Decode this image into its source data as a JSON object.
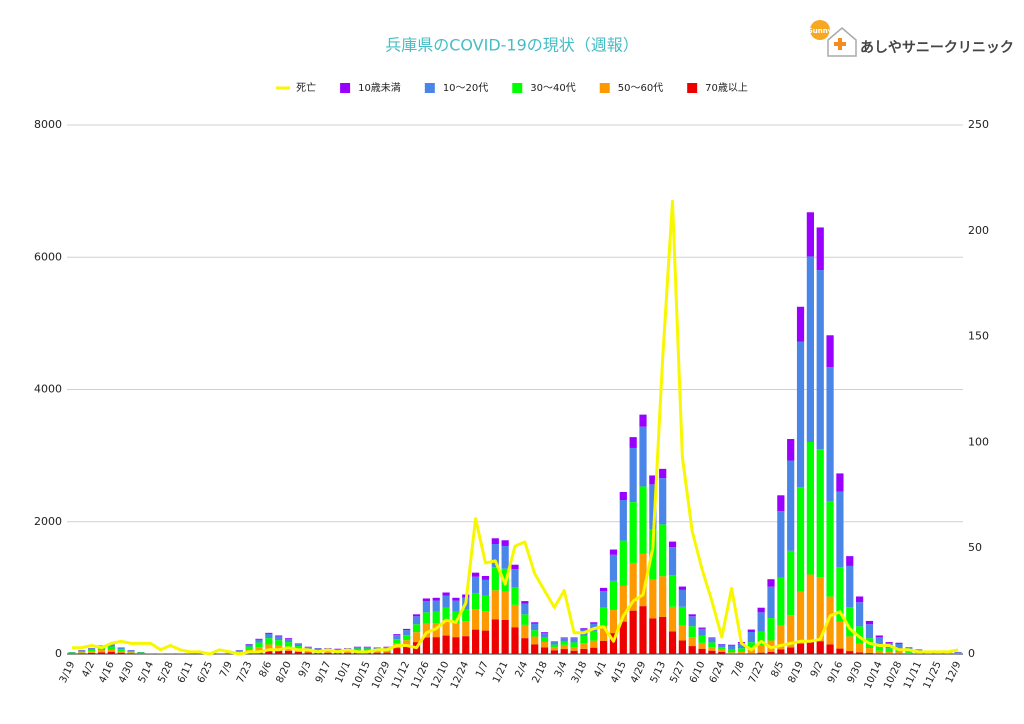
{
  "logo": {
    "badge": "Sunny",
    "text": "あしやサニークリニック"
  },
  "chart_data": {
    "type": "bar",
    "title": "兵庫県のCOVID-19の現状（週報）",
    "categories": [
      "3/19",
      null,
      "4/2",
      null,
      "4/16",
      null,
      "4/30",
      null,
      "5/14",
      null,
      "5/28",
      null,
      "6/11",
      null,
      "6/25",
      null,
      "7/9",
      null,
      "7/23",
      null,
      "8/6",
      null,
      "8/20",
      null,
      "9/3",
      null,
      "9/17",
      null,
      "10/1",
      null,
      "10/15",
      null,
      "10/29",
      null,
      "11/12",
      null,
      "11/26",
      null,
      "12/10",
      null,
      "12/24",
      null,
      "1/7",
      null,
      "1/21",
      null,
      "2/4",
      null,
      "2/18",
      null,
      "3/4",
      null,
      "3/18",
      null,
      "4/1",
      null,
      "4/15",
      null,
      "4/29",
      null,
      "5/13",
      null,
      "5/27",
      null,
      "6/10",
      null,
      "6/24",
      null,
      "7/8",
      null,
      "7/22",
      null,
      "8/5",
      null,
      "8/19",
      null,
      "9/2",
      null,
      "9/16",
      null,
      "9/30",
      null,
      "10/14",
      null,
      "10/28",
      null,
      "11/11",
      null,
      "11/25",
      null,
      "12/9"
    ],
    "series": [
      {
        "name": "死亡",
        "type": "line",
        "axis": "y2",
        "color": "#f7f700",
        "values": [
          3,
          3,
          4,
          3,
          5,
          6,
          5,
          5,
          5,
          2,
          4,
          2,
          1,
          1,
          0,
          2,
          1,
          0,
          1,
          1,
          2,
          2,
          3,
          2,
          2,
          1,
          2,
          1,
          2,
          1,
          1,
          2,
          2,
          4,
          4,
          3,
          10,
          12,
          16,
          15,
          24,
          64,
          43,
          44,
          33,
          51,
          53,
          38,
          30,
          22,
          30,
          10,
          10,
          12,
          13,
          6,
          18,
          25,
          28,
          50,
          140,
          214,
          93,
          58,
          40,
          25,
          8,
          31,
          5,
          2,
          6,
          3,
          4,
          5,
          6,
          6,
          7,
          18,
          20,
          12,
          8,
          5,
          4,
          4,
          2,
          2,
          1,
          1,
          1,
          1,
          2
        ]
      },
      {
        "name": "10歳未満",
        "color": "#9900ff",
        "values": [
          1,
          3,
          4,
          6,
          7,
          5,
          3,
          1,
          0,
          0,
          0,
          0,
          0,
          0,
          0,
          0,
          1,
          3,
          7,
          11,
          16,
          14,
          12,
          8,
          5,
          4,
          4,
          4,
          4,
          5,
          5,
          5,
          5,
          15,
          19,
          30,
          42,
          42,
          46,
          42,
          45,
          61,
          59,
          87,
          86,
          67,
          40,
          24,
          16,
          9,
          12,
          12,
          19,
          24,
          50,
          79,
          122,
          164,
          181,
          135,
          140,
          85,
          51,
          30,
          20,
          12,
          7,
          14,
          18,
          37,
          70,
          113,
          240,
          325,
          525,
          668,
          645,
          482,
          273,
          148,
          87,
          50,
          28,
          18,
          17,
          10,
          7,
          4,
          3,
          4,
          3
        ]
      },
      {
        "name": "10〜20代",
        "color": "#4a86e8",
        "values": [
          6,
          12,
          18,
          26,
          30,
          20,
          12,
          6,
          2,
          1,
          0,
          0,
          0,
          0,
          1,
          2,
          4,
          12,
          30,
          46,
          64,
          56,
          48,
          32,
          22,
          18,
          18,
          16,
          18,
          22,
          22,
          20,
          22,
          60,
          76,
          120,
          168,
          170,
          186,
          170,
          180,
          246,
          236,
          350,
          344,
          270,
          160,
          96,
          66,
          38,
          50,
          63,
          98,
          120,
          250,
          395,
          613,
          820,
          905,
          675,
          700,
          425,
          255,
          150,
          100,
          63,
          38,
          59,
          76,
          155,
          294,
          475,
          1008,
          1365,
          2205,
          2806,
          2709,
          2024,
          1147,
          622,
          365,
          210,
          118,
          76,
          71,
          42,
          29,
          17,
          13,
          17,
          13
        ]
      },
      {
        "name": "30〜40代",
        "color": "#00ff00",
        "values": [
          9,
          18,
          27,
          39,
          45,
          30,
          18,
          9,
          3,
          2,
          1,
          1,
          1,
          1,
          2,
          3,
          6,
          18,
          45,
          69,
          96,
          84,
          72,
          48,
          33,
          27,
          27,
          24,
          27,
          33,
          33,
          30,
          33,
          60,
          76,
          120,
          168,
          170,
          186,
          170,
          180,
          246,
          236,
          350,
          344,
          270,
          160,
          96,
          66,
          38,
          50,
          70,
          109,
          134,
          280,
          442,
          686,
          918,
          1014,
          756,
          784,
          476,
          286,
          168,
          112,
          70,
          42,
          42,
          54,
          111,
          210,
          339,
          720,
          975,
          1575,
          2004,
          1935,
          1446,
          819,
          444,
          261,
          150,
          84,
          54,
          51,
          30,
          21,
          12,
          9,
          12,
          9
        ]
      },
      {
        "name": "50〜60代",
        "color": "#ff9900",
        "values": [
          8,
          15,
          23,
          33,
          38,
          25,
          15,
          8,
          3,
          1,
          1,
          1,
          1,
          1,
          1,
          3,
          5,
          15,
          38,
          58,
          80,
          70,
          60,
          40,
          28,
          23,
          23,
          20,
          23,
          28,
          28,
          25,
          28,
          75,
          95,
          150,
          210,
          213,
          233,
          213,
          225,
          308,
          295,
          438,
          430,
          338,
          200,
          120,
          83,
          48,
          63,
          55,
          86,
          106,
          220,
          348,
          539,
          722,
          796,
          594,
          616,
          374,
          224,
          132,
          88,
          55,
          33,
          21,
          27,
          56,
          105,
          170,
          360,
          488,
          788,
          1002,
          968,
          723,
          410,
          222,
          131,
          75,
          42,
          27,
          26,
          15,
          11,
          6,
          5,
          6,
          5
        ]
      },
      {
        "name": "70歳以上",
        "color": "#ee0000",
        "values": [
          6,
          12,
          18,
          26,
          30,
          20,
          12,
          6,
          2,
          1,
          1,
          1,
          0,
          1,
          1,
          2,
          4,
          12,
          30,
          46,
          64,
          56,
          48,
          32,
          22,
          18,
          18,
          16,
          18,
          22,
          22,
          20,
          22,
          90,
          114,
          180,
          252,
          255,
          279,
          255,
          270,
          369,
          354,
          525,
          516,
          405,
          240,
          144,
          99,
          57,
          75,
          50,
          78,
          96,
          200,
          316,
          490,
          656,
          724,
          540,
          560,
          340,
          204,
          120,
          80,
          50,
          30,
          4,
          5,
          11,
          21,
          34,
          72,
          98,
          158,
          200,
          194,
          145,
          82,
          44,
          26,
          15,
          8,
          5,
          5,
          3,
          2,
          1,
          1,
          1,
          1
        ]
      }
    ],
    "ylim": [
      0,
      8000
    ],
    "yticks": [
      0,
      2000,
      4000,
      6000,
      8000
    ],
    "y2lim": [
      0,
      250
    ],
    "y2ticks": [
      0,
      50,
      100,
      150,
      200,
      250
    ],
    "grid": true,
    "legend": "top"
  }
}
